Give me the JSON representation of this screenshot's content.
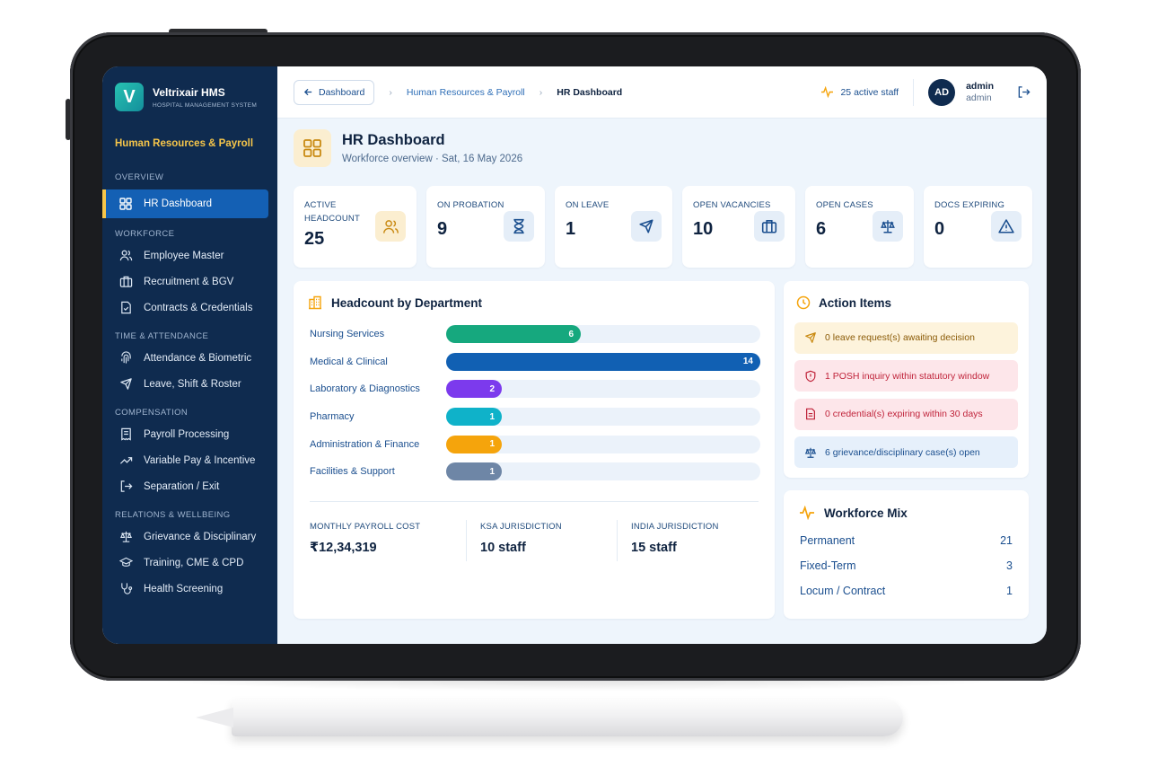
{
  "app": {
    "name": "Veltrixair HMS",
    "subtitle": "HOSPITAL MANAGEMENT SYSTEM",
    "logo_letter": "V",
    "module": "Human Resources & Payroll"
  },
  "sidebar": {
    "sections": [
      {
        "title": "OVERVIEW",
        "items": [
          {
            "label": "HR Dashboard",
            "icon": "grid-icon",
            "active": true
          }
        ]
      },
      {
        "title": "WORKFORCE",
        "items": [
          {
            "label": "Employee Master",
            "icon": "users-icon"
          },
          {
            "label": "Recruitment & BGV",
            "icon": "briefcase-icon"
          },
          {
            "label": "Contracts & Credentials",
            "icon": "document-icon"
          }
        ]
      },
      {
        "title": "TIME & ATTENDANCE",
        "items": [
          {
            "label": "Attendance & Biometric",
            "icon": "fingerprint-icon"
          },
          {
            "label": "Leave, Shift & Roster",
            "icon": "plane-icon"
          }
        ]
      },
      {
        "title": "COMPENSATION",
        "items": [
          {
            "label": "Payroll Processing",
            "icon": "receipt-icon"
          },
          {
            "label": "Variable Pay & Incentive",
            "icon": "trend-icon"
          },
          {
            "label": "Separation / Exit",
            "icon": "exit-icon"
          }
        ]
      },
      {
        "title": "RELATIONS & WELLBEING",
        "items": [
          {
            "label": "Grievance & Disciplinary",
            "icon": "scale-icon"
          },
          {
            "label": "Training, CME & CPD",
            "icon": "graduation-cap-icon"
          },
          {
            "label": "Health Screening",
            "icon": "stethoscope-icon"
          }
        ]
      }
    ]
  },
  "topbar": {
    "back_label": "Dashboard",
    "breadcrumb": [
      "Human Resources & Payroll",
      "HR Dashboard"
    ],
    "active_staff": "25 active staff",
    "avatar_initials": "AD",
    "user_name": "admin",
    "user_role": "admin"
  },
  "header": {
    "title": "HR Dashboard",
    "subtitle": "Workforce overview · Sat, 16 May 2026"
  },
  "kpis": [
    {
      "label": "ACTIVE HEADCOUNT",
      "value": "25",
      "icon": "users-icon"
    },
    {
      "label": "ON PROBATION",
      "value": "9",
      "icon": "hourglass-icon"
    },
    {
      "label": "ON LEAVE",
      "value": "1",
      "icon": "plane-icon"
    },
    {
      "label": "OPEN VACANCIES",
      "value": "10",
      "icon": "briefcase-icon"
    },
    {
      "label": "OPEN CASES",
      "value": "6",
      "icon": "scale-icon"
    },
    {
      "label": "DOCS EXPIRING",
      "value": "0",
      "icon": "warning-icon"
    }
  ],
  "headcount": {
    "title": "Headcount by Department",
    "max": 14,
    "rows": [
      {
        "label": "Nursing Services",
        "value": 6,
        "color": "#16a87e"
      },
      {
        "label": "Medical & Clinical",
        "value": 14,
        "color": "#1160b3"
      },
      {
        "label": "Laboratory & Diagnostics",
        "value": 2,
        "color": "#7c3aed"
      },
      {
        "label": "Pharmacy",
        "value": 1,
        "color": "#0fb2c9"
      },
      {
        "label": "Administration & Finance",
        "value": 1,
        "color": "#f5a40c"
      },
      {
        "label": "Facilities & Support",
        "value": 1,
        "color": "#6e86a6"
      }
    ],
    "stats": [
      {
        "label": "MONTHLY PAYROLL COST",
        "value": "₹12,34,319"
      },
      {
        "label": "KSA JURISDICTION",
        "value": "10 staff"
      },
      {
        "label": "INDIA JURISDICTION",
        "value": "15 staff"
      }
    ]
  },
  "actions": {
    "title": "Action Items",
    "items": [
      {
        "text": "0 leave request(s) awaiting decision",
        "icon": "plane-icon",
        "bg": "#fdf3dc",
        "fg": "#8a5a06"
      },
      {
        "text": "1 POSH inquiry within statutory window",
        "icon": "shield-icon",
        "bg": "#fde6ea",
        "fg": "#c0243b"
      },
      {
        "text": "0 credential(s) expiring within 30 days",
        "icon": "document-icon",
        "bg": "#fde6ea",
        "fg": "#c0243b"
      },
      {
        "text": "6 grievance/disciplinary case(s) open",
        "icon": "scale-icon",
        "bg": "#e6f0fb",
        "fg": "#1b4f8f"
      }
    ]
  },
  "workforce_mix": {
    "title": "Workforce Mix",
    "rows": [
      {
        "label": "Permanent",
        "value": "21"
      },
      {
        "label": "Fixed-Term",
        "value": "3"
      },
      {
        "label": "Locum / Contract",
        "value": "1"
      }
    ]
  }
}
